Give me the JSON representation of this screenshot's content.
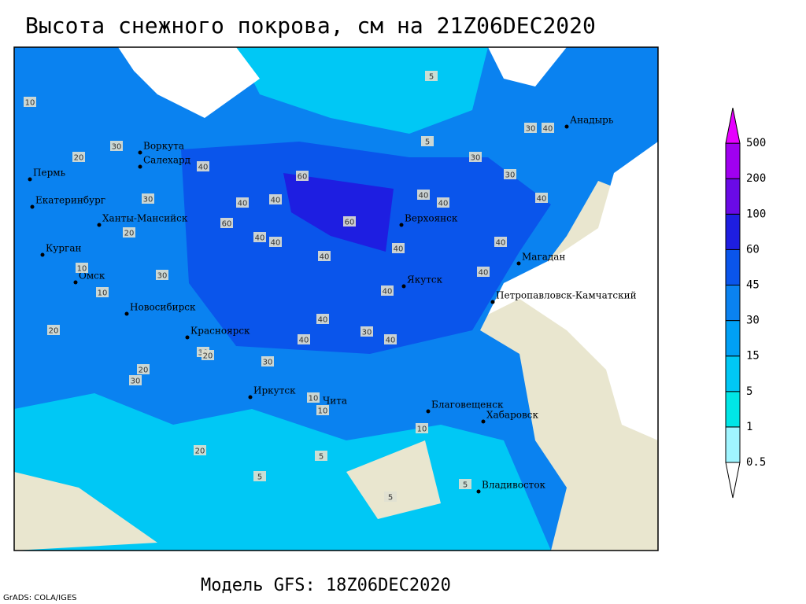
{
  "title": "Высота снежного покрова, см на 21Z06DEC2020",
  "subtitle": "Модель GFS: 18Z06DEC2020",
  "credit": "GrADS: COLA/IGES",
  "colorbar": {
    "levels": [
      0.5,
      1,
      5,
      15,
      30,
      45,
      60,
      100,
      200,
      500
    ],
    "colors": [
      "#ffffff",
      "#a0f5ff",
      "#00e6e6",
      "#00c8f5",
      "#00a0f5",
      "#0a82f0",
      "#0a55eb",
      "#1e1ee1",
      "#6a0ae6",
      "#a000f0",
      "#e600ff"
    ]
  },
  "cities": [
    "Воркута",
    "Салехард",
    "Пермь",
    "Екатеринбург",
    "Ханты-Мансийск",
    "Курган",
    "Омск",
    "Новосибирск",
    "Красноярск",
    "Иркутск",
    "Чита",
    "Благовещенск",
    "Хабаровск",
    "Владивосток",
    "Верхоянск",
    "Якутск",
    "Магадан",
    "Петропавловск-Камчатский",
    "Анадырь"
  ],
  "contour_labels": [
    "10",
    "30",
    "20",
    "30",
    "40",
    "40",
    "40",
    "60",
    "40",
    "60",
    "40",
    "40",
    "40",
    "30",
    "40",
    "60",
    "40",
    "40",
    "40",
    "40",
    "30",
    "20",
    "30",
    "40",
    "30",
    "40",
    "40",
    "30",
    "20",
    "20",
    "30",
    "10",
    "20",
    "10",
    "5",
    "5",
    "10",
    "10",
    "5",
    "5",
    "30",
    "30",
    "40",
    "40",
    "10",
    "20",
    "5",
    "5"
  ]
}
